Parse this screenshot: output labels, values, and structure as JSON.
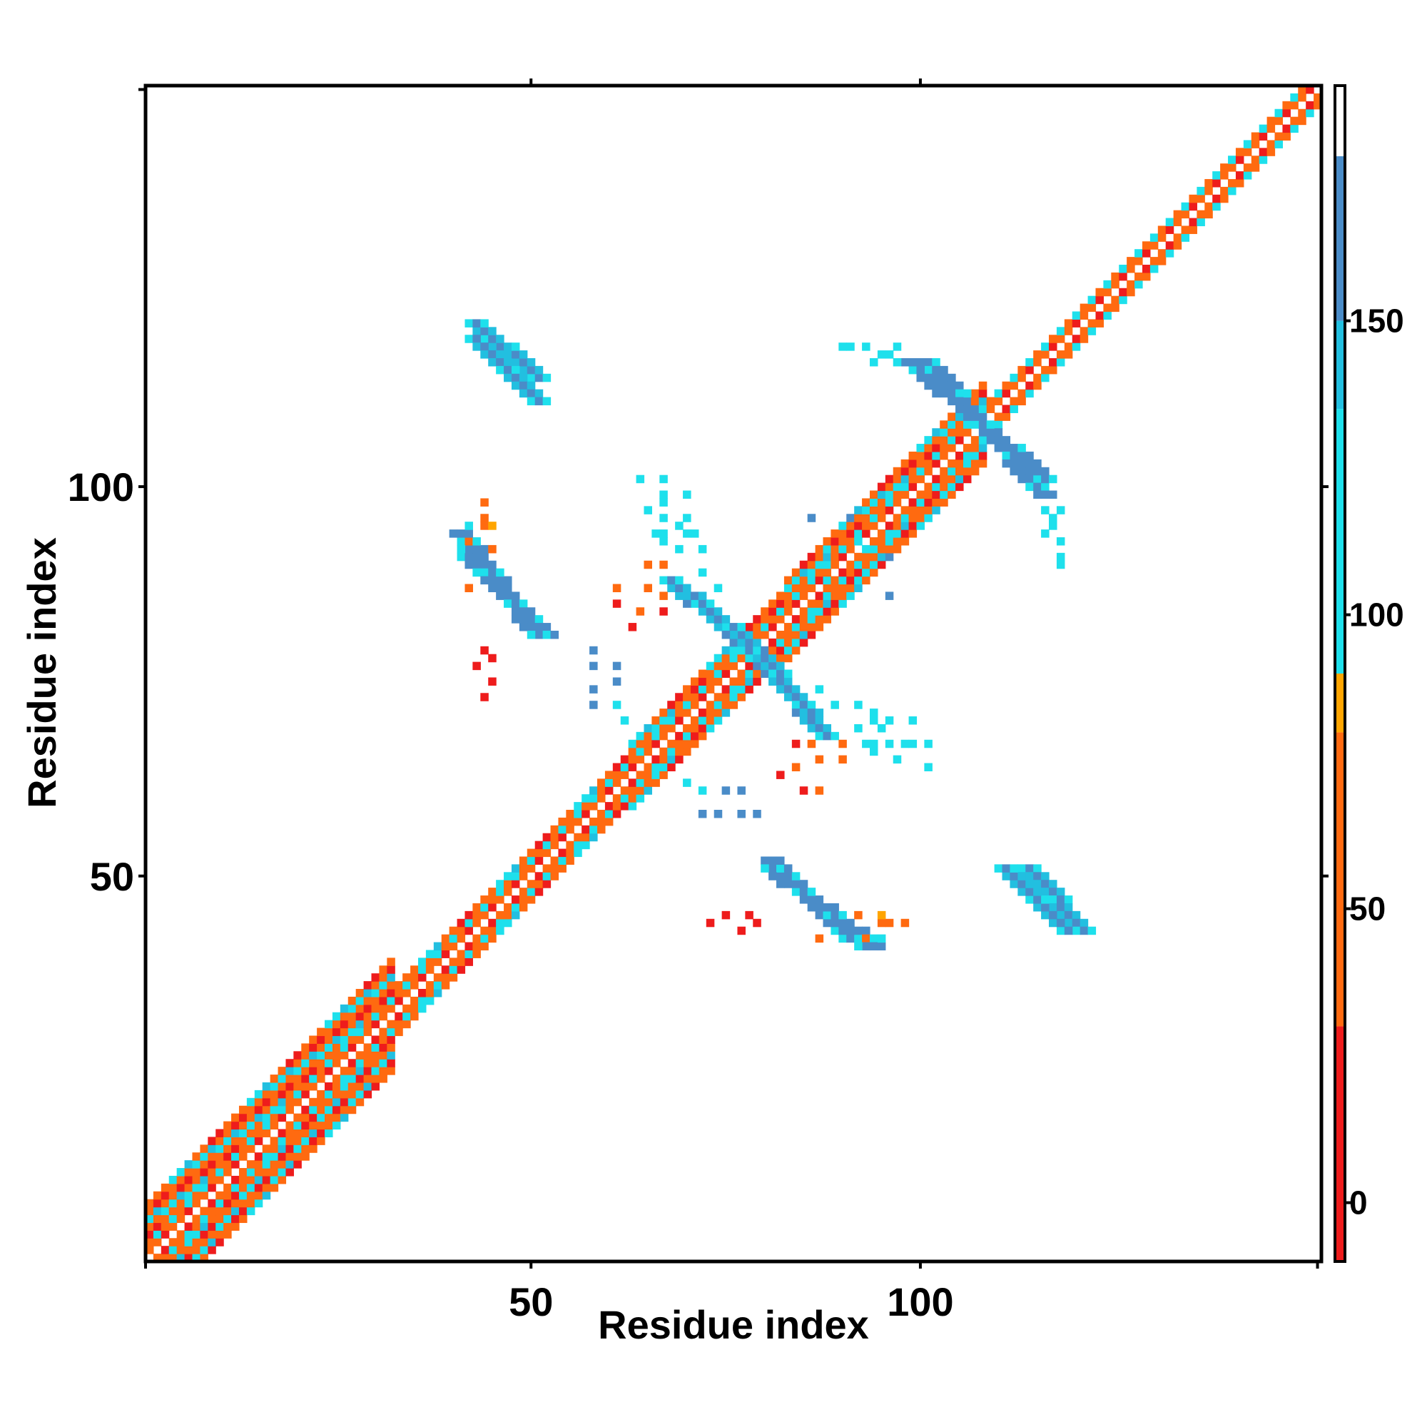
{
  "chart_data": {
    "type": "heatmap",
    "title": "",
    "xlabel": "Residue index",
    "ylabel": "Residue index",
    "xlim": [
      1,
      151
    ],
    "ylim": [
      1,
      151
    ],
    "x_ticks": [
      {
        "value": 50,
        "label": "50"
      },
      {
        "value": 100,
        "label": "100"
      }
    ],
    "y_ticks": [
      {
        "value": 50,
        "label": "50"
      },
      {
        "value": 100,
        "label": "100"
      }
    ],
    "colorbar": {
      "range": [
        -10,
        190
      ],
      "ticks": [
        {
          "value": 0,
          "label": "0"
        },
        {
          "value": 50,
          "label": "50"
        },
        {
          "value": 100,
          "label": "100"
        },
        {
          "value": 150,
          "label": "150"
        }
      ],
      "bands": [
        {
          "from": -10,
          "to": 30,
          "color": "#ee1c1c"
        },
        {
          "from": 30,
          "to": 80,
          "color": "#ff6a10"
        },
        {
          "from": 80,
          "to": 90,
          "color": "#ffa500"
        },
        {
          "from": 90,
          "to": 135,
          "color": "#1ee0ec"
        },
        {
          "from": 135,
          "to": 150,
          "color": "#22bfe0"
        },
        {
          "from": 150,
          "to": 178,
          "color": "#4a8cc8"
        },
        {
          "from": 178,
          "to": 190,
          "color": "#ffffff"
        }
      ]
    },
    "diagonal_bands": [
      {
        "from": 1,
        "to": 32,
        "half_width": 7
      },
      {
        "from": 32,
        "to": 62,
        "half_width": 3
      },
      {
        "from": 62,
        "to": 82,
        "half_width": 4
      },
      {
        "from": 82,
        "to": 108,
        "half_width": 5
      },
      {
        "from": 108,
        "to": 151,
        "half_width": 2
      }
    ],
    "off_diagonal_strands": [
      {
        "x": [
          76,
          88
        ],
        "y": [
          82,
          68
        ],
        "value": 160
      },
      {
        "x": [
          68,
          78
        ],
        "y": [
          88,
          80
        ],
        "value": 150
      },
      {
        "x": [
          101,
          116
        ],
        "y": [
          116,
          99
        ],
        "value": 160
      },
      {
        "x": [
          42,
          52
        ],
        "y": [
          91,
          81
        ],
        "value": 160
      },
      {
        "x": [
          81,
          94
        ],
        "y": [
          51,
          41
        ],
        "value": 160
      },
      {
        "x": [
          114,
          121
        ],
        "y": [
          51,
          43
        ],
        "value": 155
      },
      {
        "x": [
          43,
          51
        ],
        "y": [
          119,
          111
        ],
        "value": 150
      }
    ],
    "scattered_cells": [
      {
        "x": 64,
        "y": 101,
        "value": 120
      },
      {
        "x": 67,
        "y": 101,
        "value": 110
      },
      {
        "x": 67,
        "y": 99,
        "value": 110
      },
      {
        "x": 65,
        "y": 97,
        "value": 130
      },
      {
        "x": 67,
        "y": 96,
        "value": 110
      },
      {
        "x": 69,
        "y": 95,
        "value": 120
      },
      {
        "x": 66,
        "y": 94,
        "value": 110
      },
      {
        "x": 70,
        "y": 94,
        "value": 120
      },
      {
        "x": 67,
        "y": 93,
        "value": 120
      },
      {
        "x": 65,
        "y": 90,
        "value": 60
      },
      {
        "x": 67,
        "y": 90,
        "value": 60
      },
      {
        "x": 61,
        "y": 87,
        "value": 60
      },
      {
        "x": 65,
        "y": 87,
        "value": 40
      },
      {
        "x": 61,
        "y": 85,
        "value": 20
      },
      {
        "x": 44,
        "y": 98,
        "value": 60
      },
      {
        "x": 44,
        "y": 96,
        "value": 70
      },
      {
        "x": 42,
        "y": 95,
        "value": 110
      },
      {
        "x": 44,
        "y": 95,
        "value": 60
      },
      {
        "x": 42,
        "y": 93,
        "value": 60
      },
      {
        "x": 41,
        "y": 92,
        "value": 100
      },
      {
        "x": 43,
        "y": 89,
        "value": 110
      },
      {
        "x": 42,
        "y": 87,
        "value": 70
      },
      {
        "x": 44,
        "y": 79,
        "value": 20
      },
      {
        "x": 45,
        "y": 78,
        "value": 20
      },
      {
        "x": 43,
        "y": 77,
        "value": 20
      },
      {
        "x": 58,
        "y": 79,
        "value": 160
      },
      {
        "x": 58,
        "y": 77,
        "value": 160
      },
      {
        "x": 61,
        "y": 77,
        "value": 150
      },
      {
        "x": 61,
        "y": 75,
        "value": 150
      },
      {
        "x": 70,
        "y": 62,
        "value": 110
      },
      {
        "x": 72,
        "y": 61,
        "value": 110
      },
      {
        "x": 72,
        "y": 58,
        "value": 160
      },
      {
        "x": 74,
        "y": 58,
        "value": 160
      },
      {
        "x": 87,
        "y": 74,
        "value": 120
      },
      {
        "x": 89,
        "y": 72,
        "value": 110
      },
      {
        "x": 92,
        "y": 72,
        "value": 120
      },
      {
        "x": 94,
        "y": 71,
        "value": 110
      },
      {
        "x": 96,
        "y": 70,
        "value": 120
      },
      {
        "x": 99,
        "y": 70,
        "value": 120
      },
      {
        "x": 92,
        "y": 69,
        "value": 110
      },
      {
        "x": 94,
        "y": 67,
        "value": 120
      },
      {
        "x": 98,
        "y": 67,
        "value": 120
      },
      {
        "x": 86,
        "y": 67,
        "value": 50
      },
      {
        "x": 84,
        "y": 67,
        "value": 20
      },
      {
        "x": 84,
        "y": 64,
        "value": 50
      },
      {
        "x": 82,
        "y": 63,
        "value": 20
      },
      {
        "x": 90,
        "y": 118,
        "value": 110
      },
      {
        "x": 93,
        "y": 118,
        "value": 110
      },
      {
        "x": 96,
        "y": 117,
        "value": 110
      },
      {
        "x": 94,
        "y": 116,
        "value": 110
      },
      {
        "x": 86,
        "y": 96,
        "value": 150
      },
      {
        "x": 92,
        "y": 93,
        "value": 120
      },
      {
        "x": 96,
        "y": 91,
        "value": 150
      },
      {
        "x": 88,
        "y": 88,
        "value": 110
      },
      {
        "x": 92,
        "y": 88,
        "value": 120
      },
      {
        "x": 116,
        "y": 97,
        "value": 120
      },
      {
        "x": 118,
        "y": 97,
        "value": 110
      },
      {
        "x": 117,
        "y": 95,
        "value": 120
      },
      {
        "x": 118,
        "y": 93,
        "value": 120
      },
      {
        "x": 118,
        "y": 91,
        "value": 130
      },
      {
        "x": 75,
        "y": 45,
        "value": 20
      },
      {
        "x": 73,
        "y": 44,
        "value": 20
      },
      {
        "x": 92,
        "y": 45,
        "value": 60
      },
      {
        "x": 95,
        "y": 45,
        "value": 80
      }
    ]
  }
}
